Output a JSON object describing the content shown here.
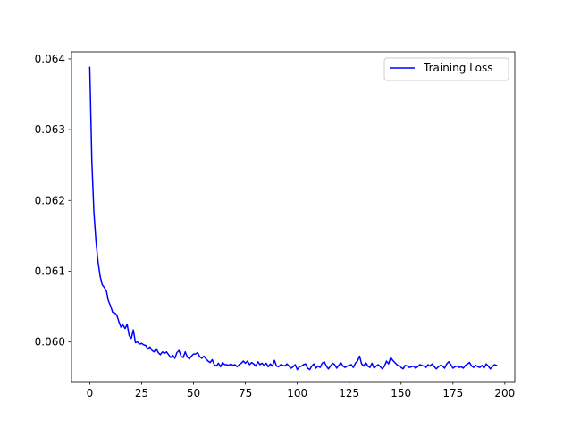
{
  "chart_data": {
    "type": "line",
    "title": "",
    "xlabel": "",
    "ylabel": "",
    "xlim": [
      -8.8,
      204.8
    ],
    "ylim": [
      0.05944,
      0.0641
    ],
    "xticks": [
      0,
      25,
      50,
      75,
      100,
      125,
      150,
      175,
      200
    ],
    "xtick_labels": [
      "0",
      "25",
      "50",
      "75",
      "100",
      "125",
      "150",
      "175",
      "200"
    ],
    "yticks": [
      0.06,
      0.061,
      0.062,
      0.063,
      0.064
    ],
    "ytick_labels": [
      "0.060",
      "0.061",
      "0.062",
      "0.063",
      "0.064"
    ],
    "grid": false,
    "legend": {
      "position": "top-right"
    },
    "series": [
      {
        "name": "Training Loss",
        "color": "#0000ff",
        "x_start": 0,
        "x_step": 1,
        "values": [
          0.06388,
          0.06255,
          0.06183,
          0.06142,
          0.06113,
          0.06093,
          0.06081,
          0.06077,
          0.06072,
          0.06058,
          0.06051,
          0.06042,
          0.06041,
          0.06038,
          0.06029,
          0.06021,
          0.06024,
          0.06019,
          0.06025,
          0.06009,
          0.06005,
          0.06017,
          0.05999,
          0.06,
          0.05997,
          0.05998,
          0.05996,
          0.05995,
          0.0599,
          0.05993,
          0.05988,
          0.05986,
          0.05991,
          0.05985,
          0.05982,
          0.05986,
          0.05984,
          0.05986,
          0.05982,
          0.05978,
          0.05981,
          0.05977,
          0.05985,
          0.05988,
          0.0598,
          0.05978,
          0.05986,
          0.05979,
          0.05976,
          0.0598,
          0.05983,
          0.05983,
          0.05985,
          0.05979,
          0.05977,
          0.0598,
          0.05976,
          0.05973,
          0.05971,
          0.05975,
          0.05968,
          0.05966,
          0.0597,
          0.05965,
          0.05971,
          0.05968,
          0.05968,
          0.05967,
          0.05969,
          0.05967,
          0.05968,
          0.05965,
          0.05968,
          0.0597,
          0.05973,
          0.0597,
          0.05973,
          0.05968,
          0.05971,
          0.05969,
          0.05966,
          0.05972,
          0.05968,
          0.0597,
          0.05967,
          0.0597,
          0.05965,
          0.05969,
          0.05966,
          0.05974,
          0.05966,
          0.05965,
          0.05968,
          0.05967,
          0.05966,
          0.05969,
          0.05966,
          0.05963,
          0.05965,
          0.05968,
          0.05961,
          0.05965,
          0.05966,
          0.05968,
          0.05969,
          0.05963,
          0.05961,
          0.05966,
          0.05969,
          0.05963,
          0.05966,
          0.05964,
          0.0597,
          0.05972,
          0.05966,
          0.05962,
          0.05966,
          0.0597,
          0.05968,
          0.05963,
          0.05967,
          0.05971,
          0.05966,
          0.05964,
          0.05966,
          0.05967,
          0.05968,
          0.05964,
          0.0597,
          0.05973,
          0.0598,
          0.05969,
          0.05966,
          0.05971,
          0.05966,
          0.05964,
          0.0597,
          0.05963,
          0.05966,
          0.05968,
          0.05965,
          0.05962,
          0.05966,
          0.05973,
          0.05969,
          0.05978,
          0.05974,
          0.05971,
          0.05968,
          0.05966,
          0.05964,
          0.05962,
          0.05967,
          0.05966,
          0.05964,
          0.05965,
          0.05966,
          0.05963,
          0.05965,
          0.05968,
          0.05967,
          0.05966,
          0.05964,
          0.05968,
          0.05966,
          0.05969,
          0.05965,
          0.05962,
          0.05965,
          0.05967,
          0.05966,
          0.05963,
          0.05969,
          0.05972,
          0.05968,
          0.05963,
          0.05965,
          0.05966,
          0.05964,
          0.05965,
          0.05963,
          0.05967,
          0.05969,
          0.05971,
          0.05966,
          0.05964,
          0.05967,
          0.05965,
          0.05964,
          0.05967,
          0.05963,
          0.05969,
          0.05966,
          0.05962,
          0.05965,
          0.05968,
          0.05967
        ]
      }
    ]
  }
}
